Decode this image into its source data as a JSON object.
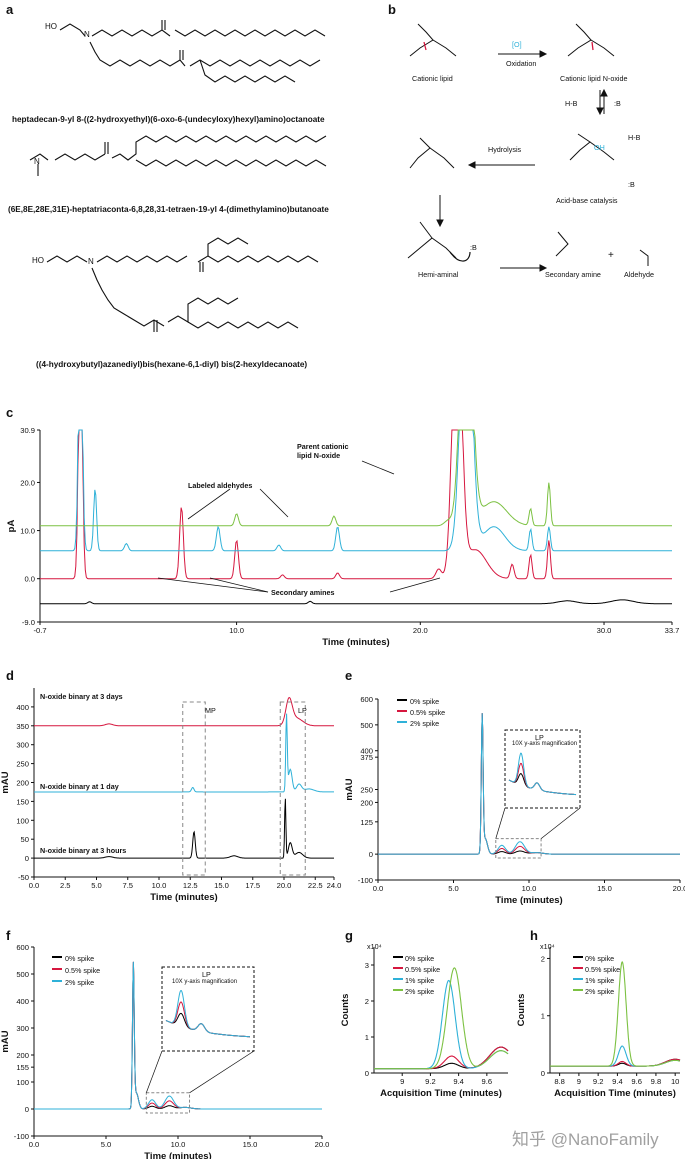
{
  "panels": {
    "a": "a",
    "b": "b",
    "c": "c",
    "d": "d",
    "e": "e",
    "f": "f",
    "g": "g",
    "h": "h"
  },
  "panel_a": {
    "ho1": "HO",
    "n1": "N",
    "name1": "heptadecan-9-yl 8-((2-hydroxyethyl)(6-oxo-6-(undecyloxy)hexyl)amino)octanoate",
    "n2": "N",
    "name2": "(6E,8E,28E,31E)-heptatriaconta-6,8,28,31-tetraen-19-yl 4-(dimethylamino)butanoate",
    "ho3": "HO",
    "n3": "N",
    "name3": "((4-hydroxybutyl)azanediyl)bis(hexane-6,1-diyl) bis(2-hexyldecanoate)"
  },
  "panel_b": {
    "cationic_lipid": "Cationic lipid",
    "oxidation_reagent": "[O]",
    "oxidation": "Oxidation",
    "n_oxide": "Cationic lipid N-oxide",
    "hb1": "H-B",
    "b1": ":B",
    "acid_base": "Acid-base catalysis",
    "hydrolysis": "Hydrolysis",
    "hemi_aminal": "Hemi-aminal",
    "secondary_amine": "Secondary amine",
    "aldehyde": "Aldehyde",
    "plus": "+",
    "hb2": "H-B",
    "oh": "OH",
    "b2": ":B",
    "b3": ":B"
  },
  "panel_c": {
    "annotation_parent": "Parent cationic lipid N-oxide",
    "annotation_parent_1": "Parent cationic",
    "annotation_parent_2": "lipid N-oxide",
    "annotation_aldehydes": "Labeled aldehydes",
    "annotation_amines": "Secondary amines"
  },
  "panel_d": {
    "box_mp": "MP",
    "box_lp": "LP"
  },
  "panel_e": {
    "inset_title": "LP",
    "inset_sub": "10X y-axis magnification"
  },
  "panel_f": {
    "inset_title": "LP",
    "inset_sub": "10X y-axis magnification"
  },
  "watermark": "知乎 @NanoFamily",
  "chart_data": [
    {
      "id": "c",
      "type": "line",
      "xlabel": "Time (minutes)",
      "ylabel": "pA",
      "xlim": [
        -0.7,
        33.7
      ],
      "ylim": [
        -9.0,
        30.9
      ],
      "xticks": [
        "-0.7",
        "10.0",
        "20.0",
        "30.0",
        "33.7"
      ],
      "yticks": [
        "-9.0",
        "0.0",
        "10.0",
        "20.0",
        "30.9"
      ],
      "series_colors": [
        "#000000",
        "#d6173f",
        "#2fb1d8",
        "#7cc142"
      ]
    },
    {
      "id": "d",
      "type": "line",
      "xlabel": "Time (minutes)",
      "ylabel": "mAU",
      "xlim": [
        0,
        24
      ],
      "ylim": [
        -50,
        450
      ],
      "xticks": [
        "0.0",
        "2.5",
        "5.0",
        "7.5",
        "10.0",
        "12.5",
        "15.0",
        "17.5",
        "20.0",
        "22.5",
        "24.0"
      ],
      "yticks": [
        "-50",
        "0",
        "50",
        "100",
        "150",
        "200",
        "250",
        "300",
        "350",
        "400"
      ],
      "trace_labels": [
        "N-oxide binary at 3 days",
        "N-oxide binary at 1 day",
        "N-oxide binary at 3 hours"
      ],
      "series_colors": [
        "#d6173f",
        "#2fb1d8",
        "#000000"
      ]
    },
    {
      "id": "e",
      "type": "line",
      "xlabel": "Time (minutes)",
      "ylabel": "mAU",
      "xlim": [
        0,
        20
      ],
      "ylim": [
        -100,
        600
      ],
      "xticks": [
        "0.0",
        "5.0",
        "10.0",
        "15.0",
        "20.0"
      ],
      "yticks": [
        "-100",
        "0",
        "125",
        "200",
        "250",
        "375",
        "400",
        "500",
        "600"
      ],
      "series": [
        {
          "name": "0% spike",
          "color": "#000000"
        },
        {
          "name": "0.5% spike",
          "color": "#d6173f"
        },
        {
          "name": "2% spike",
          "color": "#2fb1d8"
        }
      ]
    },
    {
      "id": "f",
      "type": "line",
      "xlabel": "Time (minutes)",
      "ylabel": "mAU",
      "xlim": [
        0,
        20
      ],
      "ylim": [
        -100,
        600
      ],
      "xticks": [
        "0.0",
        "5.0",
        "10.0",
        "15.0",
        "20.0"
      ],
      "yticks": [
        "-100",
        "0",
        "100",
        "155",
        "200",
        "300",
        "400",
        "500",
        "600"
      ],
      "series": [
        {
          "name": "0% spike",
          "color": "#000000"
        },
        {
          "name": "0.5% spike",
          "color": "#d6173f"
        },
        {
          "name": "2% spike",
          "color": "#2fb1d8"
        }
      ]
    },
    {
      "id": "g",
      "type": "line",
      "xlabel": "Acquisition Time (minutes)",
      "ylabel": "Counts",
      "scale_label": "x10⁴",
      "xlim": [
        8.8,
        9.75
      ],
      "ylim": [
        0,
        3.5
      ],
      "xticks": [
        "9",
        "9.2",
        "9.4",
        "9.6"
      ],
      "yticks": [
        "0",
        "1",
        "2",
        "3"
      ],
      "series": [
        {
          "name": "0% spike",
          "color": "#000000"
        },
        {
          "name": "0.5% spike",
          "color": "#d6173f"
        },
        {
          "name": "1% spike",
          "color": "#2fb1d8"
        },
        {
          "name": "2% spike",
          "color": "#7cc142"
        }
      ]
    },
    {
      "id": "h",
      "type": "line",
      "xlabel": "Acquisition Time (minutes)",
      "ylabel": "Counts",
      "scale_label": "x10⁴",
      "xlim": [
        8.7,
        10.05
      ],
      "ylim": [
        0,
        2.2
      ],
      "xticks": [
        "8.8",
        "9",
        "9.2",
        "9.4",
        "9.6",
        "9.8",
        "10"
      ],
      "yticks": [
        "0",
        "1",
        "2"
      ],
      "series": [
        {
          "name": "0% spike",
          "color": "#000000"
        },
        {
          "name": "0.5% spike",
          "color": "#d6173f"
        },
        {
          "name": "1% spike",
          "color": "#2fb1d8"
        },
        {
          "name": "2% spike",
          "color": "#7cc142"
        }
      ]
    }
  ]
}
